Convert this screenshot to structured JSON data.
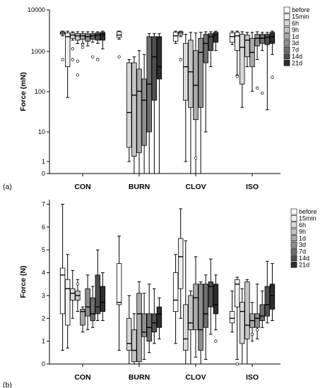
{
  "colors": {
    "before": "#ffffff",
    "15min": "#f0f0f0",
    "6h": "#d8d8d8",
    "9h": "#c4c4c4",
    "1d": "#aaaaaa",
    "3d": "#8e8e8e",
    "7d": "#6e6e6e",
    "14d": "#505050",
    "21d": "#2e2e2e"
  },
  "chart_data": [
    {
      "type": "box",
      "panel_label": "(a)",
      "ylabel": "Force (mN)",
      "yscale": "log",
      "ylim": [
        0,
        10000
      ],
      "ytick_labels": [
        "10000",
        "1000",
        "100",
        "10",
        "1",
        "0"
      ],
      "categories": [
        "CON",
        "BURN",
        "CLOV",
        "ISO"
      ],
      "legend": [
        "before",
        "15min",
        "6h",
        "9h",
        "1d",
        "3d",
        "7d",
        "14d",
        "21d"
      ],
      "series": [
        {
          "name": "before",
          "boxes": [
            {
              "min": 2300,
              "q1": 2500,
              "median": 2700,
              "q3": 2900,
              "max": 3000,
              "outliers": [
                600
              ]
            },
            {
              "min": 1900,
              "q1": 2100,
              "median": 2400,
              "q3": 2900,
              "max": 3000,
              "outliers": [
                700
              ]
            },
            {
              "min": 1500,
              "q1": 1700,
              "median": 2300,
              "q3": 2800,
              "max": 3000,
              "outliers": []
            },
            {
              "min": 1400,
              "q1": 1600,
              "median": 2200,
              "q3": 2700,
              "max": 3000,
              "outliers": []
            }
          ]
        },
        {
          "name": "15min",
          "boxes": [
            {
              "min": 70,
              "q1": 400,
              "median": 2200,
              "q3": 2700,
              "max": 3000,
              "outliers": []
            },
            null,
            {
              "min": 2200,
              "q1": 2400,
              "median": 2700,
              "q3": 2900,
              "max": 3000,
              "outliers": [
                600
              ]
            },
            {
              "min": 250,
              "q1": 1000,
              "median": 2300,
              "q3": 2800,
              "max": 3000,
              "outliers": [
                230
              ]
            }
          ]
        },
        {
          "name": "6h",
          "boxes": [
            {
              "min": 1800,
              "q1": 2000,
              "median": 2400,
              "q3": 2700,
              "max": 2900,
              "outliers": [
                1100,
                600
              ]
            },
            {
              "min": 1,
              "q1": 3,
              "median": 30,
              "q3": 500,
              "max": 600,
              "outliers": []
            },
            {
              "min": 1,
              "q1": 60,
              "median": 400,
              "q3": 1500,
              "max": 2500,
              "outliers": []
            },
            {
              "min": 40,
              "q1": 150,
              "median": 1200,
              "q3": 2500,
              "max": 2900,
              "outliers": []
            }
          ]
        },
        {
          "name": "9h",
          "boxes": [
            {
              "min": 1500,
              "q1": 1800,
              "median": 2300,
              "q3": 2600,
              "max": 2900,
              "outliers": [
                550,
                250
              ]
            },
            {
              "min": 0,
              "q1": 1.5,
              "median": 80,
              "q3": 500,
              "max": 700,
              "outliers": []
            },
            {
              "min": 0,
              "q1": 40,
              "median": 300,
              "q3": 1800,
              "max": 2800,
              "outliers": []
            },
            {
              "min": 400,
              "q1": 700,
              "median": 1800,
              "q3": 2400,
              "max": 2800,
              "outliers": []
            }
          ]
        },
        {
          "name": "1d",
          "boxes": [
            {
              "min": 1500,
              "q1": 1900,
              "median": 2300,
              "q3": 2600,
              "max": 2900,
              "outliers": [
                1400,
                1200
              ]
            },
            {
              "min": 0,
              "q1": 2,
              "median": 100,
              "q3": 350,
              "max": 1000,
              "outliers": []
            },
            {
              "min": 0,
              "q1": 20,
              "median": 140,
              "q3": 1000,
              "max": 2700,
              "outliers": [
                1.3
              ]
            },
            {
              "min": 100,
              "q1": 400,
              "median": 900,
              "q3": 2000,
              "max": 2800,
              "outliers": []
            }
          ]
        },
        {
          "name": "3d",
          "boxes": [
            {
              "min": 1300,
              "q1": 1700,
              "median": 2200,
              "q3": 2600,
              "max": 2900,
              "outliers": []
            },
            {
              "min": 0,
              "q1": 3.5,
              "median": 60,
              "q3": 200,
              "max": 800,
              "outliers": []
            },
            {
              "min": 0,
              "q1": 40,
              "median": 900,
              "q3": 2000,
              "max": 2800,
              "outliers": []
            },
            {
              "min": 600,
              "q1": 1300,
              "median": 2000,
              "q3": 2500,
              "max": 2900,
              "outliers": [
                120
              ]
            }
          ]
        },
        {
          "name": "7d",
          "boxes": [
            {
              "min": 1600,
              "q1": 1900,
              "median": 2300,
              "q3": 2600,
              "max": 2900,
              "outliers": [
                700
              ]
            },
            {
              "min": 0,
              "q1": 10,
              "median": 150,
              "q3": 2200,
              "max": 2600,
              "outliers": []
            },
            {
              "min": 10,
              "q1": 500,
              "median": 1500,
              "q3": 2500,
              "max": 2900,
              "outliers": []
            },
            {
              "min": 1000,
              "q1": 1500,
              "median": 2000,
              "q3": 2500,
              "max": 2800,
              "outliers": [
                90
              ]
            }
          ]
        },
        {
          "name": "14d",
          "boxes": [
            {
              "min": 1500,
              "q1": 1800,
              "median": 2400,
              "q3": 2700,
              "max": 2900,
              "outliers": [
                600
              ]
            },
            {
              "min": 0,
              "q1": 60,
              "median": 700,
              "q3": 2200,
              "max": 2600,
              "outliers": []
            },
            {
              "min": 400,
              "q1": 1000,
              "median": 2200,
              "q3": 2600,
              "max": 2900,
              "outliers": []
            },
            {
              "min": 35,
              "q1": 1400,
              "median": 2100,
              "q3": 2500,
              "max": 2800,
              "outliers": []
            }
          ]
        },
        {
          "name": "21d",
          "boxes": [
            {
              "min": 1100,
              "q1": 1800,
              "median": 2500,
              "q3": 2800,
              "max": 3000,
              "outliers": []
            },
            {
              "min": 0,
              "q1": 200,
              "median": 400,
              "q3": 2200,
              "max": 2600,
              "outliers": []
            },
            {
              "min": 1000,
              "q1": 1600,
              "median": 2400,
              "q3": 2800,
              "max": 3000,
              "outliers": []
            },
            {
              "min": 800,
              "q1": 1500,
              "median": 2200,
              "q3": 2800,
              "max": 3000,
              "outliers": [
                220
              ]
            }
          ]
        }
      ]
    },
    {
      "type": "box",
      "panel_label": "(b)",
      "ylabel": "Force (N)",
      "yscale": "linear",
      "ylim": [
        0,
        7.2
      ],
      "yticks": [
        0,
        1,
        2,
        3,
        4,
        5,
        6,
        7
      ],
      "categories": [
        "CON",
        "BURN",
        "CLOV",
        "ISO"
      ],
      "legend": [
        "before",
        "15min",
        "6h",
        "9h",
        "1d",
        "3d",
        "7d",
        "14d",
        "21d"
      ],
      "series": [
        {
          "name": "before",
          "boxes": [
            {
              "min": 0.6,
              "q1": 2.2,
              "median": 3.9,
              "q3": 4.2,
              "max": 7.0,
              "outliers": []
            },
            {
              "min": 0.6,
              "q1": 2.6,
              "median": 2.7,
              "q3": 4.4,
              "max": 5.6,
              "outliers": []
            },
            {
              "min": 0.9,
              "q1": 2.3,
              "median": 2.8,
              "q3": 4.0,
              "max": 4.8,
              "outliers": []
            },
            {
              "min": 1.4,
              "q1": 1.8,
              "median": 2.0,
              "q3": 2.3,
              "max": 3.2,
              "outliers": []
            }
          ]
        },
        {
          "name": "15min",
          "boxes": [
            {
              "min": 0.7,
              "q1": 1.7,
              "median": 3.3,
              "q3": 3.7,
              "max": 4.8,
              "outliers": []
            },
            null,
            {
              "min": 2.0,
              "q1": 3.3,
              "median": 4.7,
              "q3": 5.5,
              "max": 6.8,
              "outliers": []
            },
            {
              "min": 0.2,
              "q1": 2.5,
              "median": 3.5,
              "q3": 3.7,
              "max": 3.8,
              "outliers": [
                0.0
              ]
            }
          ]
        },
        {
          "name": "6h",
          "boxes": [
            {
              "min": 2.0,
              "q1": 2.8,
              "median": 3.1,
              "q3": 3.3,
              "max": 4.1,
              "outliers": []
            },
            {
              "min": 0.0,
              "q1": 0.6,
              "median": 0.9,
              "q3": 2.0,
              "max": 3.0,
              "outliers": []
            },
            {
              "min": 0.0,
              "q1": 0.6,
              "median": 1.1,
              "q3": 2.6,
              "max": 5.4,
              "outliers": []
            },
            {
              "min": 0.0,
              "q1": 0.9,
              "median": 2.3,
              "q3": 2.7,
              "max": 3.3,
              "outliers": []
            }
          ]
        },
        {
          "name": "9h",
          "boxes": [
            {
              "min": 2.3,
              "q1": 2.8,
              "median": 3.0,
              "q3": 3.2,
              "max": 3.7,
              "outliers": [
                3.5
              ]
            },
            {
              "min": 0.0,
              "q1": 0.1,
              "median": 0.6,
              "q3": 1.5,
              "max": 2.2,
              "outliers": []
            },
            {
              "min": 0.0,
              "q1": 1.5,
              "median": 1.8,
              "q3": 3.0,
              "max": 3.2,
              "outliers": []
            },
            {
              "min": 0.0,
              "q1": 1.1,
              "median": 1.7,
              "q3": 3.6,
              "max": 3.7,
              "outliers": []
            }
          ]
        },
        {
          "name": "1d",
          "boxes": [
            {
              "min": 1.4,
              "q1": 1.7,
              "median": 2.3,
              "q3": 2.4,
              "max": 2.5,
              "outliers": []
            },
            {
              "min": 0.0,
              "q1": 0.1,
              "median": 2.2,
              "q3": 3.1,
              "max": 3.6,
              "outliers": []
            },
            {
              "min": 0.3,
              "q1": 1.5,
              "median": 2.9,
              "q3": 3.5,
              "max": 4.7,
              "outliers": []
            },
            {
              "min": 1.0,
              "q1": 1.6,
              "median": 1.9,
              "q3": 2.2,
              "max": 2.7,
              "outliers": [
                1.3
              ]
            }
          ]
        },
        {
          "name": "3d",
          "boxes": [
            {
              "min": 1.5,
              "q1": 2.1,
              "median": 2.5,
              "q3": 3.3,
              "max": 3.9,
              "outliers": []
            },
            {
              "min": 0.2,
              "q1": 1.2,
              "median": 1.4,
              "q3": 2.2,
              "max": 3.1,
              "outliers": []
            },
            {
              "min": 0.0,
              "q1": 0.6,
              "median": 1.5,
              "q3": 3.5,
              "max": 3.6,
              "outliers": []
            },
            {
              "min": 1.1,
              "q1": 1.6,
              "median": 2.0,
              "q3": 2.2,
              "max": 3.5,
              "outliers": [
                1.5
              ]
            }
          ]
        },
        {
          "name": "7d",
          "boxes": [
            {
              "min": 1.6,
              "q1": 1.9,
              "median": 2.2,
              "q3": 2.9,
              "max": 3.4,
              "outliers": []
            },
            {
              "min": 0.5,
              "q1": 1.0,
              "median": 1.6,
              "q3": 2.2,
              "max": 3.5,
              "outliers": []
            },
            {
              "min": 0.2,
              "q1": 1.6,
              "median": 2.2,
              "q3": 3.5,
              "max": 3.9,
              "outliers": []
            },
            {
              "min": 1.6,
              "q1": 1.9,
              "median": 2.1,
              "q3": 2.6,
              "max": 3.2,
              "outliers": []
            }
          ]
        },
        {
          "name": "14d",
          "boxes": [
            {
              "min": 1.9,
              "q1": 2.2,
              "median": 2.5,
              "q3": 3.9,
              "max": 5.0,
              "outliers": []
            },
            {
              "min": 0.9,
              "q1": 1.4,
              "median": 1.8,
              "q3": 2.2,
              "max": 3.3,
              "outliers": []
            },
            {
              "min": 1.3,
              "q1": 2.5,
              "median": 3.4,
              "q3": 3.6,
              "max": 4.6,
              "outliers": []
            },
            {
              "min": 1.8,
              "q1": 2.1,
              "median": 2.6,
              "q3": 3.4,
              "max": 4.5,
              "outliers": []
            }
          ]
        },
        {
          "name": "21d",
          "boxes": [
            {
              "min": 1.9,
              "q1": 2.3,
              "median": 2.7,
              "q3": 3.4,
              "max": 4.0,
              "outliers": []
            },
            {
              "min": 1.1,
              "q1": 1.6,
              "median": 2.2,
              "q3": 2.5,
              "max": 2.9,
              "outliers": []
            },
            {
              "min": 1.5,
              "q1": 2.2,
              "median": 2.6,
              "q3": 3.5,
              "max": 3.9,
              "outliers": [
                1.0
              ]
            },
            {
              "min": 1.9,
              "q1": 2.4,
              "median": 3.0,
              "q3": 3.5,
              "max": 4.4,
              "outliers": []
            }
          ]
        }
      ]
    }
  ]
}
